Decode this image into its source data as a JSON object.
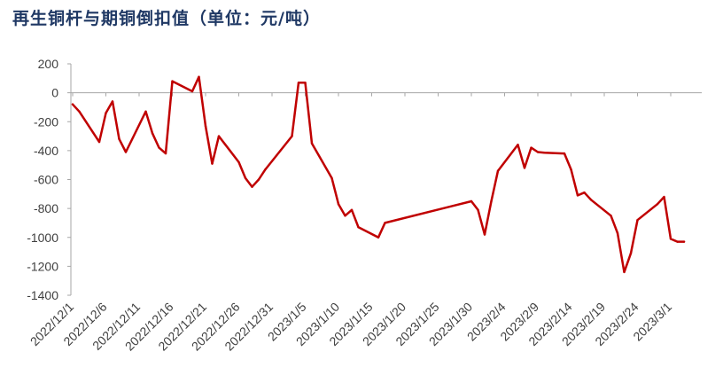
{
  "chart_data": {
    "type": "line",
    "title": "再生铜杆与期铜倒扣值（单位：元/吨）",
    "xlabel": "",
    "ylabel": "",
    "ylim": [
      -1400,
      200
    ],
    "yticks": [
      200,
      0,
      -200,
      -400,
      -600,
      -800,
      -1000,
      -1200,
      -1400
    ],
    "ytick_labels": [
      "200",
      "0",
      "-200",
      "-400",
      "-600",
      "-800",
      "-1000",
      "-1200",
      "-1400"
    ],
    "xtick_labels": [
      "2022/12/1",
      "2022/12/6",
      "2022/12/11",
      "2022/12/16",
      "2022/12/21",
      "2022/12/26",
      "2022/12/31",
      "2023/1/5",
      "2023/1/10",
      "2023/1/15",
      "2023/1/20",
      "2023/1/25",
      "2023/1/30",
      "2023/2/4",
      "2023/2/9",
      "2023/2/14",
      "2023/2/19",
      "2023/2/24",
      "2023/3/1"
    ],
    "grid": false,
    "line_color": "#c00000",
    "series": [
      {
        "x": [
          "2022/12/1",
          "2022/12/2",
          "2022/12/5",
          "2022/12/6",
          "2022/12/7",
          "2022/12/8",
          "2022/12/9",
          "2022/12/12",
          "2022/12/13",
          "2022/12/14",
          "2022/12/15",
          "2022/12/16",
          "2022/12/19",
          "2022/12/20",
          "2022/12/21",
          "2022/12/22",
          "2022/12/23",
          "2022/12/26",
          "2022/12/27",
          "2022/12/28",
          "2022/12/29",
          "2022/12/30",
          "2023/1/3",
          "2023/1/4",
          "2023/1/5",
          "2023/1/6",
          "2023/1/9",
          "2023/1/10",
          "2023/1/11",
          "2023/1/12",
          "2023/1/13",
          "2023/1/16",
          "2023/1/17",
          "2023/1/30",
          "2023/1/31",
          "2023/2/1",
          "2023/2/2",
          "2023/2/3",
          "2023/2/6",
          "2023/2/7",
          "2023/2/8",
          "2023/2/9",
          "2023/2/10",
          "2023/2/13",
          "2023/2/14",
          "2023/2/15",
          "2023/2/16",
          "2023/2/17",
          "2023/2/20",
          "2023/2/21",
          "2023/2/22",
          "2023/2/23",
          "2023/2/24",
          "2023/2/27",
          "2023/2/28",
          "2023/3/1",
          "2023/3/2",
          "2023/3/3"
        ],
        "values": [
          -80,
          -130,
          -340,
          -140,
          -60,
          -320,
          -410,
          -130,
          -280,
          -380,
          -420,
          80,
          10,
          110,
          -230,
          -490,
          -300,
          -480,
          -590,
          -650,
          -600,
          -530,
          -300,
          70,
          70,
          -350,
          -590,
          -770,
          -850,
          -810,
          -930,
          -1000,
          -900,
          -750,
          -810,
          -980,
          -750,
          -540,
          -360,
          -520,
          -380,
          -410,
          -415,
          -420,
          -530,
          -710,
          -690,
          -740,
          -850,
          -970,
          -1240,
          -1110,
          -880,
          -770,
          -720,
          -1010,
          -1030,
          -1030
        ]
      }
    ]
  }
}
